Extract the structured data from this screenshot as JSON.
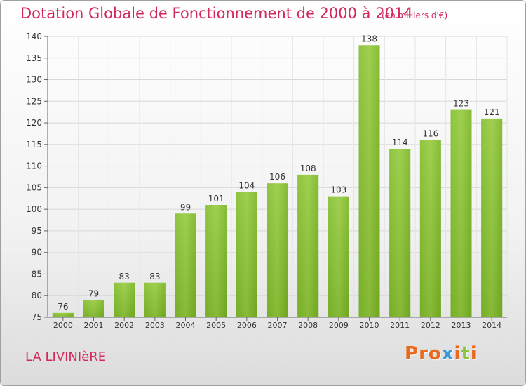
{
  "header": {
    "title": "Dotation Globale de Fonctionnement de 2000 à 2014",
    "subtitle": "(en milliers d'€)"
  },
  "footer": {
    "commune": "LA LIVINIèRE",
    "logo_text": "Proxiti",
    "logo_colors": [
      "#e86a1e",
      "#e86a1e",
      "#e86a1e",
      "#3a9ad9",
      "#e86a1e",
      "#8cc63f",
      "#e86a1e"
    ]
  },
  "chart_data": {
    "type": "bar",
    "categories": [
      "2000",
      "2001",
      "2002",
      "2003",
      "2004",
      "2005",
      "2006",
      "2007",
      "2008",
      "2009",
      "2010",
      "2011",
      "2012",
      "2013",
      "2014"
    ],
    "values": [
      76,
      79,
      83,
      83,
      99,
      101,
      104,
      106,
      108,
      103,
      138,
      114,
      116,
      123,
      121
    ],
    "data_labels": [
      "76",
      "79",
      "83",
      "83",
      "99",
      "101",
      "104",
      "106",
      "108",
      "103",
      "138",
      "114",
      "116",
      "123",
      "121"
    ],
    "title": "Dotation Globale de Fonctionnement de 2000 à 2014",
    "subtitle": "(en milliers d'€)",
    "xlabel": "",
    "ylabel": "",
    "ylim": [
      75,
      140
    ],
    "yticks": [
      75,
      80,
      85,
      90,
      95,
      100,
      105,
      110,
      115,
      120,
      125,
      130,
      135,
      140
    ],
    "grid": true,
    "bar_color_top": "#9ccc4e",
    "bar_color_bottom": "#6fa81e"
  }
}
